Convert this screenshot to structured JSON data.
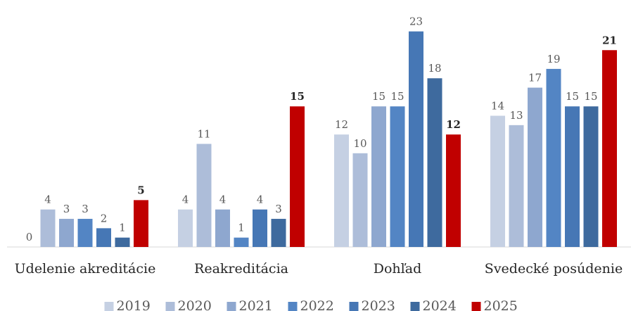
{
  "chart_data": {
    "type": "bar",
    "categories": [
      "Udelenie akreditácie",
      "Reakreditácia",
      "Dohľad",
      "Svedecké posúdenie"
    ],
    "series": [
      {
        "name": "2019",
        "color": "#c5d0e3",
        "values": [
          0,
          4,
          12,
          14
        ]
      },
      {
        "name": "2020",
        "color": "#adbdd9",
        "values": [
          4,
          11,
          10,
          13
        ]
      },
      {
        "name": "2021",
        "color": "#8ea7cf",
        "values": [
          3,
          4,
          15,
          17
        ]
      },
      {
        "name": "2022",
        "color": "#5385c4",
        "values": [
          3,
          1,
          15,
          19
        ]
      },
      {
        "name": "2023",
        "color": "#4677b5",
        "values": [
          2,
          4,
          23,
          15
        ]
      },
      {
        "name": "2024",
        "color": "#3e6a9e",
        "values": [
          1,
          3,
          18,
          15
        ]
      },
      {
        "name": "2025",
        "color": "#c00000",
        "values": [
          5,
          15,
          12,
          21
        ],
        "bold": true
      }
    ],
    "ylim": [
      0,
      25
    ],
    "legend": "bottom"
  }
}
